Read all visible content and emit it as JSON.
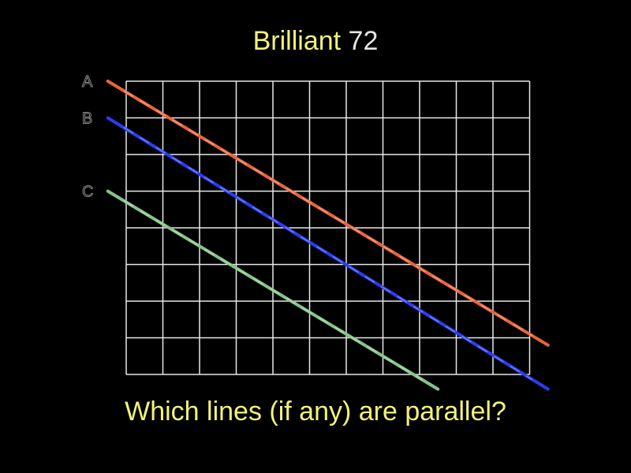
{
  "title": {
    "word": "Brilliant",
    "number": "72"
  },
  "grid": {
    "columns": 11,
    "rows": 8,
    "line_color": "#e8e8e8"
  },
  "lines": [
    {
      "label": "A",
      "color": "#e8643c",
      "from": [
        -0.5,
        0
      ],
      "to": [
        11.5,
        7.2
      ]
    },
    {
      "label": "B",
      "color": "#2a3df0",
      "from": [
        -0.5,
        1
      ],
      "to": [
        11.5,
        8.4
      ]
    },
    {
      "label": "C",
      "color": "#86c48a",
      "from": [
        -0.5,
        3
      ],
      "to": [
        8.5,
        8.4
      ]
    }
  ],
  "question": "Which lines (if any) are parallel?",
  "colors": {
    "background": "#000000",
    "title_accent": "#f2f27a",
    "title_number": "#e6e6e6",
    "question": "#f2f27a"
  }
}
